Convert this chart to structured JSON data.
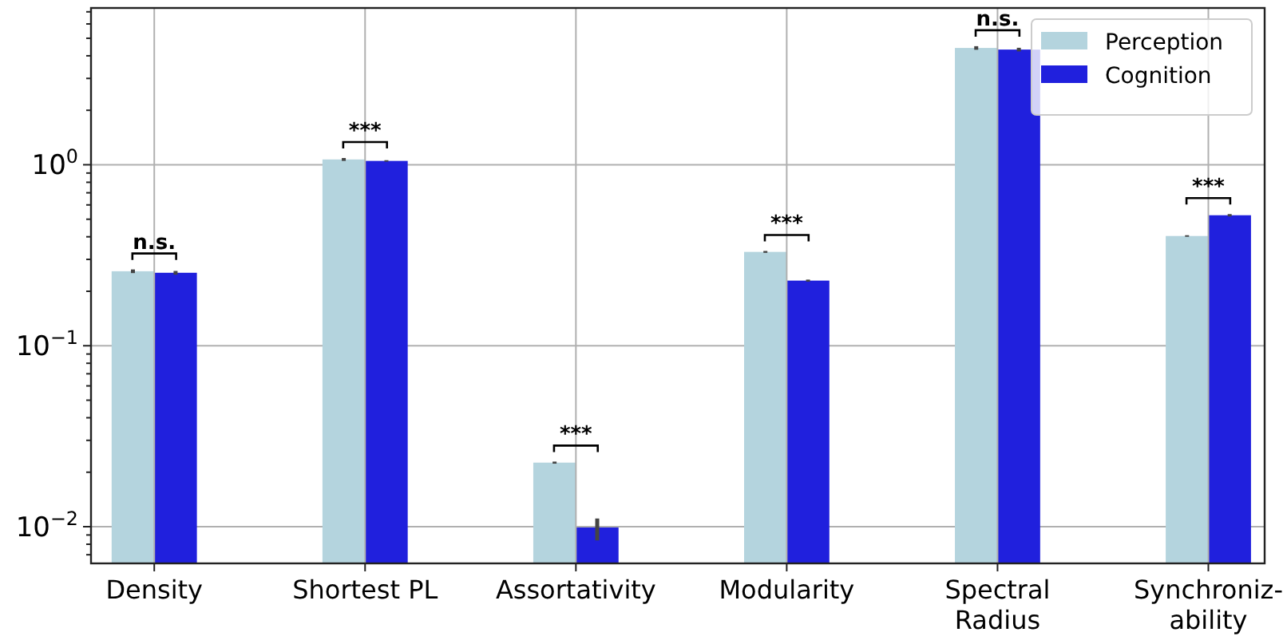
{
  "chart_data": {
    "type": "bar",
    "log": true,
    "grid": true,
    "legend": "top right",
    "categories": [
      "Density",
      "Shortest PL",
      "Assortativity",
      "Modularity",
      "Spectral\nRadius",
      "Synchroniz-\nability"
    ],
    "series": [
      {
        "name": "Perception",
        "color": "#b4d4de",
        "values": [
          0.258,
          1.07,
          0.0226,
          0.33,
          4.42,
          0.404
        ],
        "errors": [
          0.006,
          0.02,
          0.0003,
          0.004,
          0.1,
          0.004
        ]
      },
      {
        "name": "Cognition",
        "color": "#2020dd",
        "values": [
          0.253,
          1.05,
          0.0099,
          0.229,
          4.33,
          0.526
        ],
        "errors": [
          0.006,
          0.01,
          [
            0.0084,
            0.0111
          ],
          0.003,
          0.1,
          0.008
        ]
      }
    ],
    "ylim": [
      0.00627,
      7.35
    ],
    "yticks": [
      {
        "value": 0.007,
        "label": null
      },
      {
        "value": 0.008,
        "label": null
      },
      {
        "value": 0.009,
        "label": null
      },
      {
        "value": 0.01,
        "label": "10$^{−2}$"
      },
      {
        "value": 0.02,
        "label": null
      },
      {
        "value": 0.03,
        "label": null
      },
      {
        "value": 0.04,
        "label": null
      },
      {
        "value": 0.05,
        "label": null
      },
      {
        "value": 0.06,
        "label": null
      },
      {
        "value": 0.07,
        "label": null
      },
      {
        "value": 0.08,
        "label": null
      },
      {
        "value": 0.09,
        "label": null
      },
      {
        "value": 0.1,
        "label": "10$^{−1}$"
      },
      {
        "value": 0.2,
        "label": null
      },
      {
        "value": 0.3,
        "label": null
      },
      {
        "value": 0.4,
        "label": null
      },
      {
        "value": 0.5,
        "label": null
      },
      {
        "value": 0.6,
        "label": null
      },
      {
        "value": 0.7,
        "label": null
      },
      {
        "value": 0.8,
        "label": null
      },
      {
        "value": 0.9,
        "label": null
      },
      {
        "value": 1,
        "label": "10$^{0}$"
      },
      {
        "value": 2,
        "label": null
      },
      {
        "value": 3,
        "label": null
      },
      {
        "value": 4,
        "label": null
      },
      {
        "value": 5,
        "label": null
      },
      {
        "value": 6,
        "label": null
      },
      {
        "value": 7,
        "label": null
      }
    ],
    "annotations": [
      "n.s.",
      "***",
      "***",
      "***",
      "n.s.",
      "***"
    ]
  }
}
